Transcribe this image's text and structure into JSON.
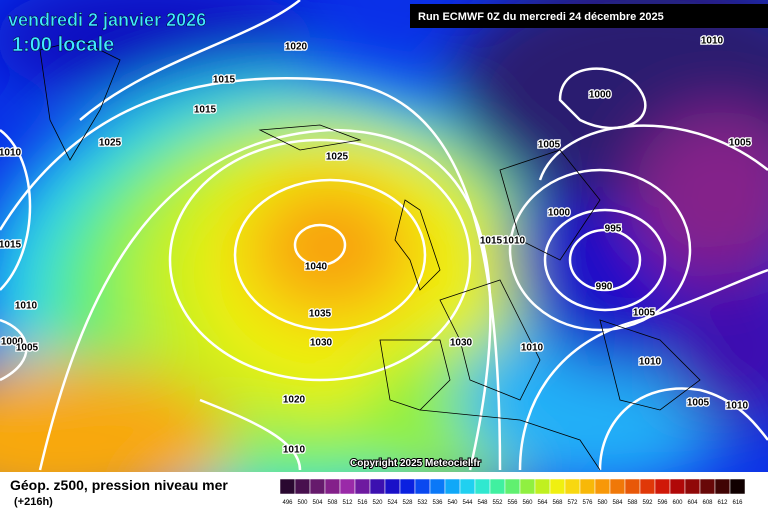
{
  "header": {
    "date": "vendredi 2 janvier 2026",
    "time": "1:00 locale",
    "run": "Run ECMWF 0Z du mercredi 24 décembre 2025"
  },
  "copyright": "Copyright 2025 Meteociel.fr",
  "footer": {
    "title": "Géop. z500, pression niveau mer",
    "lead": "(+216h)"
  },
  "isobar_labels": [
    1020,
    1015,
    1015,
    1025,
    1010,
    1025,
    1015,
    1040,
    1015,
    1010,
    1035,
    1030,
    1030,
    1010,
    1000,
    1005,
    1020,
    1010,
    1010,
    1010,
    1000,
    1005,
    1005,
    1000,
    995,
    990,
    1005,
    1010,
    1005,
    1010
  ],
  "scale": [
    {
      "value": 496,
      "color": "#2a0830"
    },
    {
      "value": 500,
      "color": "#48104e"
    },
    {
      "value": 504,
      "color": "#661a6c"
    },
    {
      "value": 508,
      "color": "#84208a"
    },
    {
      "value": 512,
      "color": "#9a2aa8"
    },
    {
      "value": 516,
      "color": "#6e1aa0"
    },
    {
      "value": 520,
      "color": "#3c10b0"
    },
    {
      "value": 524,
      "color": "#1a10c8"
    },
    {
      "value": 528,
      "color": "#0a20e0"
    },
    {
      "value": 532,
      "color": "#0a48f0"
    },
    {
      "value": 536,
      "color": "#0a78f8"
    },
    {
      "value": 540,
      "color": "#10a8f8"
    },
    {
      "value": 544,
      "color": "#20d0f0"
    },
    {
      "value": 548,
      "color": "#30e8d0"
    },
    {
      "value": 552,
      "color": "#40f0a0"
    },
    {
      "value": 556,
      "color": "#60f070"
    },
    {
      "value": 560,
      "color": "#90f040"
    },
    {
      "value": 564,
      "color": "#c0f020"
    },
    {
      "value": 568,
      "color": "#f0f010"
    },
    {
      "value": 572,
      "color": "#f8d810"
    },
    {
      "value": 576,
      "color": "#f8b808"
    },
    {
      "value": 580,
      "color": "#f89808"
    },
    {
      "value": 584,
      "color": "#f07808"
    },
    {
      "value": 588,
      "color": "#e85808"
    },
    {
      "value": 592,
      "color": "#e03808"
    },
    {
      "value": 596,
      "color": "#d01808"
    },
    {
      "value": 600,
      "color": "#b00808"
    },
    {
      "value": 604,
      "color": "#900808"
    },
    {
      "value": 608,
      "color": "#680808"
    },
    {
      "value": 612,
      "color": "#400404"
    },
    {
      "value": 616,
      "color": "#100000"
    }
  ]
}
